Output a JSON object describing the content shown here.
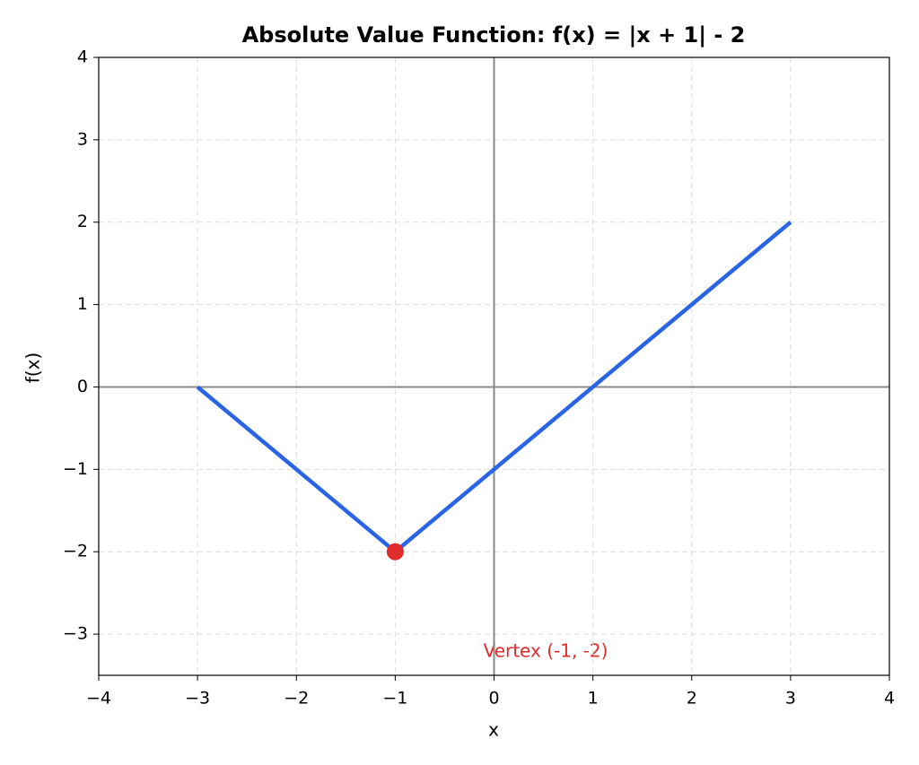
{
  "chart_data": {
    "type": "line",
    "title": "Absolute Value Function: f(x) = |x + 1| - 2",
    "x_label": "x",
    "y_label": "f(x)",
    "x": [
      -3,
      -1,
      3
    ],
    "series": [
      {
        "color": "#2a64e6",
        "values": [
          0,
          -2,
          2
        ]
      }
    ],
    "vertex": {
      "x": -1,
      "y": -2,
      "color": "#e02b2b",
      "label": "Vertex (-1, -2)"
    },
    "xlim": [
      -4,
      4
    ],
    "xticks": [
      {
        "value": -4,
        "label": "−4"
      },
      {
        "value": -3,
        "label": "−3"
      },
      {
        "value": -2,
        "label": "−2"
      },
      {
        "value": -1,
        "label": "−1"
      },
      0,
      1,
      2,
      3,
      4
    ],
    "ylim": [
      -3.5,
      4
    ],
    "yticks": [
      {
        "value": -3,
        "label": "−3"
      },
      {
        "value": -2,
        "label": "−2"
      },
      {
        "value": -1,
        "label": "−1"
      },
      0,
      1,
      2,
      3,
      4
    ],
    "grid": true,
    "zero_axes": true
  }
}
